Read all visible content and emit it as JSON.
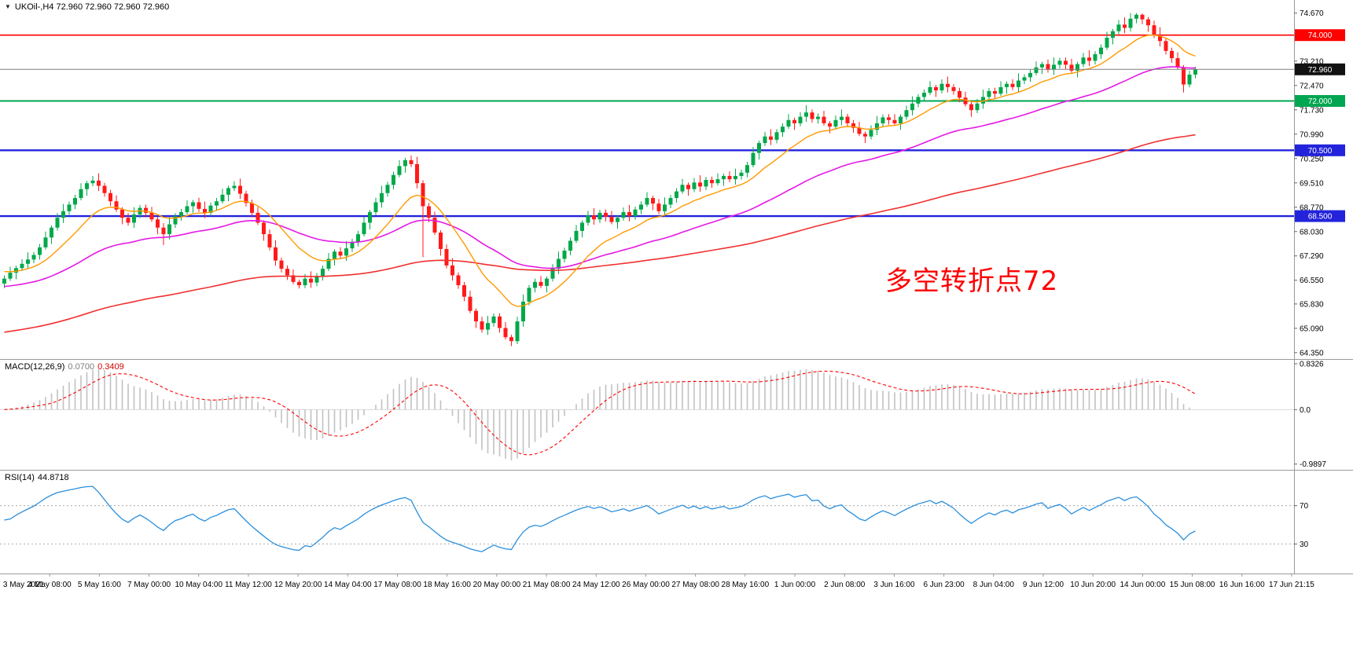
{
  "header": {
    "symbol_line": "UKOil-,H4 72.960 72.960 72.960 72.960"
  },
  "annotation": {
    "text": "多空转折点72",
    "color": "#ff0000"
  },
  "chart_data": {
    "type": "candlestick",
    "symbol": "UKOil-",
    "timeframe": "H4",
    "quote": {
      "open": "72.960",
      "high": "72.960",
      "low": "72.960",
      "close": "72.960"
    },
    "price_axis": {
      "range": [
        64.18,
        75.02
      ],
      "ticks": [
        "74.670",
        "73.210",
        "72.470",
        "71.730",
        "70.990",
        "70.250",
        "69.510",
        "68.770",
        "68.030",
        "67.290",
        "66.550",
        "65.830",
        "65.090",
        "64.350"
      ]
    },
    "levels": [
      {
        "value": 74.0,
        "label": "74.000",
        "color": "#ff0000",
        "line_width": 1.6
      },
      {
        "value": 72.0,
        "label": "72.000",
        "color": "#00a651",
        "line_width": 2
      },
      {
        "value": 70.5,
        "label": "70.500",
        "color": "#2323dc",
        "line_width": 2.4
      },
      {
        "value": 68.5,
        "label": "68.500",
        "color": "#2323dc",
        "line_width": 2.4
      }
    ],
    "current_price": {
      "value": 72.96,
      "label": "72.960",
      "line_color": "#808080",
      "badge_color": "#111111"
    },
    "colors": {
      "up": "#00a84a",
      "down": "#ff1a1a",
      "background": "#ffffff"
    },
    "moving_averages": [
      {
        "name": "ma-fast-orange",
        "color": "#ff9900",
        "period": 13,
        "seed": 66.85,
        "width": 1.4
      },
      {
        "name": "ma-mid-magenta",
        "color": "#e télé519e5",
        "period": 44,
        "seed": 66.35,
        "width": 1.6
      },
      {
        "name": "ma-slow-red",
        "color": "#f03030",
        "period": 140,
        "seed": 64.95,
        "width": 1.6
      }
    ],
    "candles": [
      [
        66.45,
        66.7,
        66.31,
        66.6
      ],
      [
        66.6,
        66.96,
        66.53,
        66.78
      ],
      [
        66.78,
        66.99,
        66.58,
        66.92
      ],
      [
        66.92,
        67.19,
        66.83,
        67.05
      ],
      [
        67.05,
        67.4,
        66.89,
        67.18
      ],
      [
        67.18,
        67.41,
        67.07,
        67.32
      ],
      [
        67.32,
        67.65,
        67.18,
        67.55
      ],
      [
        67.55,
        68.03,
        67.48,
        67.85
      ],
      [
        67.85,
        68.22,
        67.65,
        68.15
      ],
      [
        68.15,
        68.59,
        68.06,
        68.45
      ],
      [
        68.45,
        68.87,
        68.29,
        68.65
      ],
      [
        68.65,
        68.94,
        68.54,
        68.85
      ],
      [
        68.85,
        69.15,
        68.71,
        69.05
      ],
      [
        69.05,
        69.5,
        68.98,
        69.32
      ],
      [
        69.32,
        69.57,
        69.12,
        69.5
      ],
      [
        69.5,
        69.72,
        69.41,
        69.58
      ],
      [
        69.58,
        69.8,
        69.26,
        69.42
      ],
      [
        69.42,
        69.51,
        69.09,
        69.2
      ],
      [
        69.2,
        69.3,
        68.81,
        68.95
      ],
      [
        68.95,
        69.13,
        68.63,
        68.7
      ],
      [
        68.7,
        68.77,
        68.25,
        68.45
      ],
      [
        68.45,
        68.59,
        68.21,
        68.3
      ],
      [
        68.3,
        68.77,
        68.14,
        68.55
      ],
      [
        68.55,
        68.84,
        68.44,
        68.75
      ],
      [
        68.75,
        68.85,
        68.46,
        68.6
      ],
      [
        68.6,
        68.78,
        68.33,
        68.4
      ],
      [
        68.4,
        68.47,
        67.95,
        68.15
      ],
      [
        68.15,
        68.29,
        67.62,
        67.95
      ],
      [
        67.95,
        68.47,
        67.79,
        68.25
      ],
      [
        68.25,
        68.59,
        68.14,
        68.5
      ],
      [
        68.5,
        68.72,
        68.36,
        68.62
      ],
      [
        68.62,
        68.98,
        68.55,
        68.8
      ],
      [
        68.8,
        68.99,
        68.6,
        68.92
      ],
      [
        68.92,
        69.06,
        68.63,
        68.72
      ],
      [
        68.72,
        68.94,
        68.44,
        68.6
      ],
      [
        68.6,
        68.91,
        68.49,
        68.82
      ],
      [
        68.82,
        69.05,
        68.68,
        68.95
      ],
      [
        68.95,
        69.33,
        68.88,
        69.15
      ],
      [
        69.15,
        69.42,
        68.95,
        69.35
      ],
      [
        69.35,
        69.56,
        69.26,
        69.42
      ],
      [
        69.42,
        69.64,
        69.02,
        69.18
      ],
      [
        69.18,
        69.27,
        68.79,
        68.9
      ],
      [
        68.9,
        69.0,
        68.46,
        68.6
      ],
      [
        68.6,
        68.78,
        68.23,
        68.3
      ],
      [
        68.3,
        68.37,
        67.75,
        67.95
      ],
      [
        67.95,
        68.09,
        67.46,
        67.55
      ],
      [
        67.55,
        67.77,
        66.99,
        67.15
      ],
      [
        67.15,
        67.24,
        66.79,
        66.9
      ],
      [
        66.9,
        67.0,
        66.56,
        66.7
      ],
      [
        66.7,
        66.88,
        66.43,
        66.5
      ],
      [
        66.5,
        66.57,
        66.3,
        66.4
      ],
      [
        66.4,
        66.74,
        66.31,
        66.6
      ],
      [
        66.6,
        66.82,
        66.32,
        66.48
      ],
      [
        66.48,
        66.77,
        66.37,
        66.68
      ],
      [
        66.68,
        67.0,
        66.54,
        66.9
      ],
      [
        66.9,
        67.38,
        66.83,
        67.2
      ],
      [
        67.2,
        67.49,
        67.0,
        67.42
      ],
      [
        67.42,
        67.56,
        67.21,
        67.3
      ],
      [
        67.3,
        67.74,
        67.14,
        67.52
      ],
      [
        67.52,
        67.81,
        67.41,
        67.72
      ],
      [
        67.72,
        68.05,
        67.58,
        67.95
      ],
      [
        67.95,
        68.48,
        67.88,
        68.3
      ],
      [
        68.3,
        68.69,
        68.1,
        68.62
      ],
      [
        68.62,
        69.06,
        68.53,
        68.92
      ],
      [
        68.92,
        69.42,
        68.76,
        69.2
      ],
      [
        69.2,
        69.54,
        69.09,
        69.45
      ],
      [
        69.45,
        69.85,
        69.31,
        69.75
      ],
      [
        69.75,
        70.2,
        69.68,
        70.02
      ],
      [
        70.02,
        70.27,
        69.82,
        70.2
      ],
      [
        70.2,
        70.34,
        69.99,
        70.08
      ],
      [
        70.08,
        70.3,
        69.34,
        69.5
      ],
      [
        69.5,
        69.59,
        67.25,
        68.8
      ],
      [
        68.8,
        68.9,
        68.31,
        68.45
      ],
      [
        68.45,
        68.63,
        67.93,
        68.0
      ],
      [
        68.0,
        68.07,
        67.3,
        67.5
      ],
      [
        67.5,
        67.64,
        66.91,
        67.0
      ],
      [
        67.0,
        67.22,
        66.54,
        66.7
      ],
      [
        66.7,
        66.79,
        66.29,
        66.4
      ],
      [
        66.4,
        66.5,
        65.91,
        66.05
      ],
      [
        66.05,
        66.23,
        65.55,
        65.62
      ],
      [
        65.62,
        65.69,
        65.1,
        65.3
      ],
      [
        65.3,
        65.44,
        64.96,
        65.05
      ],
      [
        65.05,
        65.47,
        64.89,
        65.25
      ],
      [
        65.25,
        65.54,
        65.14,
        65.45
      ],
      [
        65.45,
        65.55,
        64.96,
        65.1
      ],
      [
        65.1,
        65.28,
        64.75,
        64.82
      ],
      [
        64.82,
        64.89,
        64.55,
        64.7
      ],
      [
        64.7,
        65.44,
        64.61,
        65.3
      ],
      [
        65.3,
        66.12,
        65.14,
        65.9
      ],
      [
        65.9,
        66.41,
        65.79,
        66.32
      ],
      [
        66.32,
        66.6,
        66.18,
        66.5
      ],
      [
        66.5,
        66.68,
        66.31,
        66.38
      ],
      [
        66.38,
        66.67,
        66.18,
        66.6
      ],
      [
        66.6,
        67.04,
        66.51,
        66.9
      ],
      [
        66.9,
        67.42,
        66.74,
        67.2
      ],
      [
        67.2,
        67.54,
        67.09,
        67.45
      ],
      [
        67.45,
        67.85,
        67.31,
        67.75
      ],
      [
        67.75,
        68.23,
        67.68,
        68.05
      ],
      [
        68.05,
        68.37,
        67.85,
        68.3
      ],
      [
        68.3,
        68.66,
        68.21,
        68.52
      ],
      [
        68.52,
        68.74,
        68.24,
        68.4
      ],
      [
        68.4,
        68.69,
        68.29,
        68.6
      ],
      [
        68.6,
        68.7,
        68.34,
        68.48
      ],
      [
        68.48,
        68.66,
        68.25,
        68.32
      ],
      [
        68.32,
        68.52,
        68.12,
        68.45
      ],
      [
        68.45,
        68.76,
        68.36,
        68.62
      ],
      [
        68.62,
        68.84,
        68.34,
        68.5
      ],
      [
        68.5,
        68.79,
        68.39,
        68.7
      ],
      [
        68.7,
        68.95,
        68.56,
        68.85
      ],
      [
        68.85,
        69.23,
        68.78,
        69.05
      ],
      [
        69.05,
        69.12,
        68.68,
        68.88
      ],
      [
        68.88,
        69.02,
        68.56,
        68.65
      ],
      [
        68.65,
        69.07,
        68.49,
        68.85
      ],
      [
        68.85,
        69.14,
        68.74,
        69.05
      ],
      [
        69.05,
        69.35,
        68.91,
        69.25
      ],
      [
        69.25,
        69.63,
        69.18,
        69.45
      ],
      [
        69.45,
        69.52,
        69.12,
        69.32
      ],
      [
        69.32,
        69.66,
        69.23,
        69.52
      ],
      [
        69.52,
        69.74,
        69.24,
        69.4
      ],
      [
        69.4,
        69.69,
        69.29,
        69.6
      ],
      [
        69.6,
        69.7,
        69.36,
        69.5
      ],
      [
        69.5,
        69.8,
        69.43,
        69.62
      ],
      [
        69.62,
        69.79,
        69.42,
        69.72
      ],
      [
        69.72,
        69.86,
        69.53,
        69.62
      ],
      [
        69.62,
        69.94,
        69.46,
        69.72
      ],
      [
        69.72,
        69.91,
        69.61,
        69.82
      ],
      [
        69.82,
        70.15,
        69.68,
        70.05
      ],
      [
        70.05,
        70.6,
        69.98,
        70.42
      ],
      [
        70.42,
        70.79,
        70.22,
        70.72
      ],
      [
        70.72,
        71.06,
        70.63,
        70.92
      ],
      [
        70.92,
        71.14,
        70.66,
        70.82
      ],
      [
        70.82,
        71.14,
        70.71,
        71.05
      ],
      [
        71.05,
        71.32,
        70.91,
        71.22
      ],
      [
        71.22,
        71.6,
        71.15,
        71.42
      ],
      [
        71.42,
        71.49,
        71.12,
        71.32
      ],
      [
        71.32,
        71.66,
        71.23,
        71.52
      ],
      [
        71.52,
        71.87,
        71.36,
        71.65
      ],
      [
        71.65,
        71.74,
        71.34,
        71.45
      ],
      [
        71.45,
        71.62,
        71.31,
        71.52
      ],
      [
        71.52,
        71.7,
        71.25,
        71.32
      ],
      [
        71.32,
        71.39,
        71.02,
        71.22
      ],
      [
        71.22,
        71.56,
        71.13,
        71.42
      ],
      [
        71.42,
        71.74,
        71.26,
        71.52
      ],
      [
        71.52,
        71.61,
        71.21,
        71.32
      ],
      [
        71.32,
        71.42,
        71.04,
        71.18
      ],
      [
        71.18,
        71.36,
        70.93,
        71.0
      ],
      [
        71.0,
        71.07,
        70.72,
        70.92
      ],
      [
        70.92,
        71.26,
        70.83,
        71.12
      ],
      [
        71.12,
        71.54,
        70.96,
        71.32
      ],
      [
        71.32,
        71.59,
        71.21,
        71.5
      ],
      [
        71.5,
        71.6,
        71.28,
        71.42
      ],
      [
        71.42,
        71.6,
        71.25,
        71.32
      ],
      [
        71.32,
        71.59,
        71.12,
        71.52
      ],
      [
        71.52,
        71.86,
        71.43,
        71.72
      ],
      [
        71.72,
        72.14,
        71.56,
        71.92
      ],
      [
        71.92,
        72.21,
        71.81,
        72.12
      ],
      [
        72.12,
        72.35,
        71.98,
        72.25
      ],
      [
        72.25,
        72.6,
        72.18,
        72.42
      ],
      [
        72.42,
        72.49,
        72.12,
        72.32
      ],
      [
        72.32,
        72.66,
        72.23,
        72.52
      ],
      [
        72.52,
        72.74,
        72.26,
        72.42
      ],
      [
        72.42,
        72.51,
        72.19,
        72.3
      ],
      [
        72.3,
        72.4,
        71.96,
        72.1
      ],
      [
        72.1,
        72.28,
        71.83,
        71.9
      ],
      [
        71.9,
        71.97,
        71.52,
        71.72
      ],
      [
        71.72,
        72.06,
        71.63,
        71.92
      ],
      [
        71.92,
        72.34,
        71.76,
        72.12
      ],
      [
        72.12,
        72.39,
        72.01,
        72.3
      ],
      [
        72.3,
        72.4,
        72.08,
        72.22
      ],
      [
        72.22,
        72.6,
        72.15,
        72.42
      ],
      [
        72.42,
        72.59,
        72.22,
        72.52
      ],
      [
        72.52,
        72.66,
        72.33,
        72.42
      ],
      [
        72.42,
        72.84,
        72.26,
        72.62
      ],
      [
        72.62,
        72.81,
        72.51,
        72.72
      ],
      [
        72.72,
        72.95,
        72.58,
        72.85
      ],
      [
        72.85,
        73.2,
        72.78,
        73.02
      ],
      [
        73.02,
        73.19,
        72.82,
        73.12
      ],
      [
        73.12,
        73.26,
        72.86,
        72.95
      ],
      [
        72.95,
        73.32,
        72.79,
        73.1
      ],
      [
        73.1,
        73.31,
        72.99,
        73.22
      ],
      [
        73.22,
        73.32,
        72.96,
        73.1
      ],
      [
        73.1,
        73.28,
        72.85,
        72.92
      ],
      [
        72.92,
        73.19,
        72.72,
        73.12
      ],
      [
        73.12,
        73.46,
        73.03,
        73.32
      ],
      [
        73.32,
        73.54,
        73.06,
        73.22
      ],
      [
        73.22,
        73.51,
        73.11,
        73.42
      ],
      [
        73.42,
        73.72,
        73.28,
        73.62
      ],
      [
        73.62,
        74.1,
        73.55,
        73.92
      ],
      [
        73.92,
        74.19,
        73.72,
        74.12
      ],
      [
        74.12,
        74.46,
        74.03,
        74.32
      ],
      [
        74.32,
        74.54,
        74.06,
        74.22
      ],
      [
        74.22,
        74.67,
        74.11,
        74.5
      ],
      [
        74.5,
        74.67,
        74.36,
        74.62
      ],
      [
        74.62,
        74.66,
        74.33,
        74.48
      ],
      [
        74.48,
        74.55,
        74.1,
        74.3
      ],
      [
        74.3,
        74.44,
        73.91,
        74.02
      ],
      [
        74.02,
        74.24,
        73.66,
        73.82
      ],
      [
        73.82,
        73.91,
        73.41,
        73.52
      ],
      [
        73.52,
        73.62,
        73.16,
        73.3
      ],
      [
        73.3,
        73.48,
        72.95,
        73.02
      ],
      [
        73.02,
        73.09,
        72.26,
        72.5
      ],
      [
        72.5,
        72.92,
        72.41,
        72.8
      ],
      [
        72.8,
        73.04,
        72.69,
        72.96
      ]
    ],
    "macd": {
      "label": "MACD(12,26,9)",
      "value_main": "0.0700",
      "value_signal": "0.3409",
      "fast_period": 12,
      "slow_period": 26,
      "signal_period": 9,
      "axis_ticks": [
        "0.8326",
        "0.0",
        "-0.9897"
      ],
      "range": [
        -1.08,
        0.89
      ],
      "histogram_color": "#c2c2c2",
      "signal_color": "#ff0000"
    },
    "rsi": {
      "label": "RSI(14)",
      "value_text": "44.8718",
      "period": 14,
      "levels": [
        70,
        30
      ],
      "range": [
        0,
        105
      ],
      "line_color": "#2a8fdd"
    },
    "time_axis": {
      "labels": [
        "3 May 2021",
        "4 May 08:00",
        "5 May 16:00",
        "7 May 00:00",
        "10 May 04:00",
        "11 May 12:00",
        "12 May 20:00",
        "14 May 04:00",
        "17 May 08:00",
        "18 May 16:00",
        "20 May 00:00",
        "21 May 08:00",
        "24 May 12:00",
        "26 May 00:00",
        "27 May 08:00",
        "28 May 16:00",
        "1 Jun 00:00",
        "2 Jun 08:00",
        "3 Jun 16:00",
        "6 Jun 23:00",
        "8 Jun 04:00",
        "9 Jun 12:00",
        "10 Jun 20:00",
        "14 Jun 00:00",
        "15 Jun 08:00",
        "16 Jun 16:00",
        "17 Jun 21:15"
      ]
    }
  }
}
